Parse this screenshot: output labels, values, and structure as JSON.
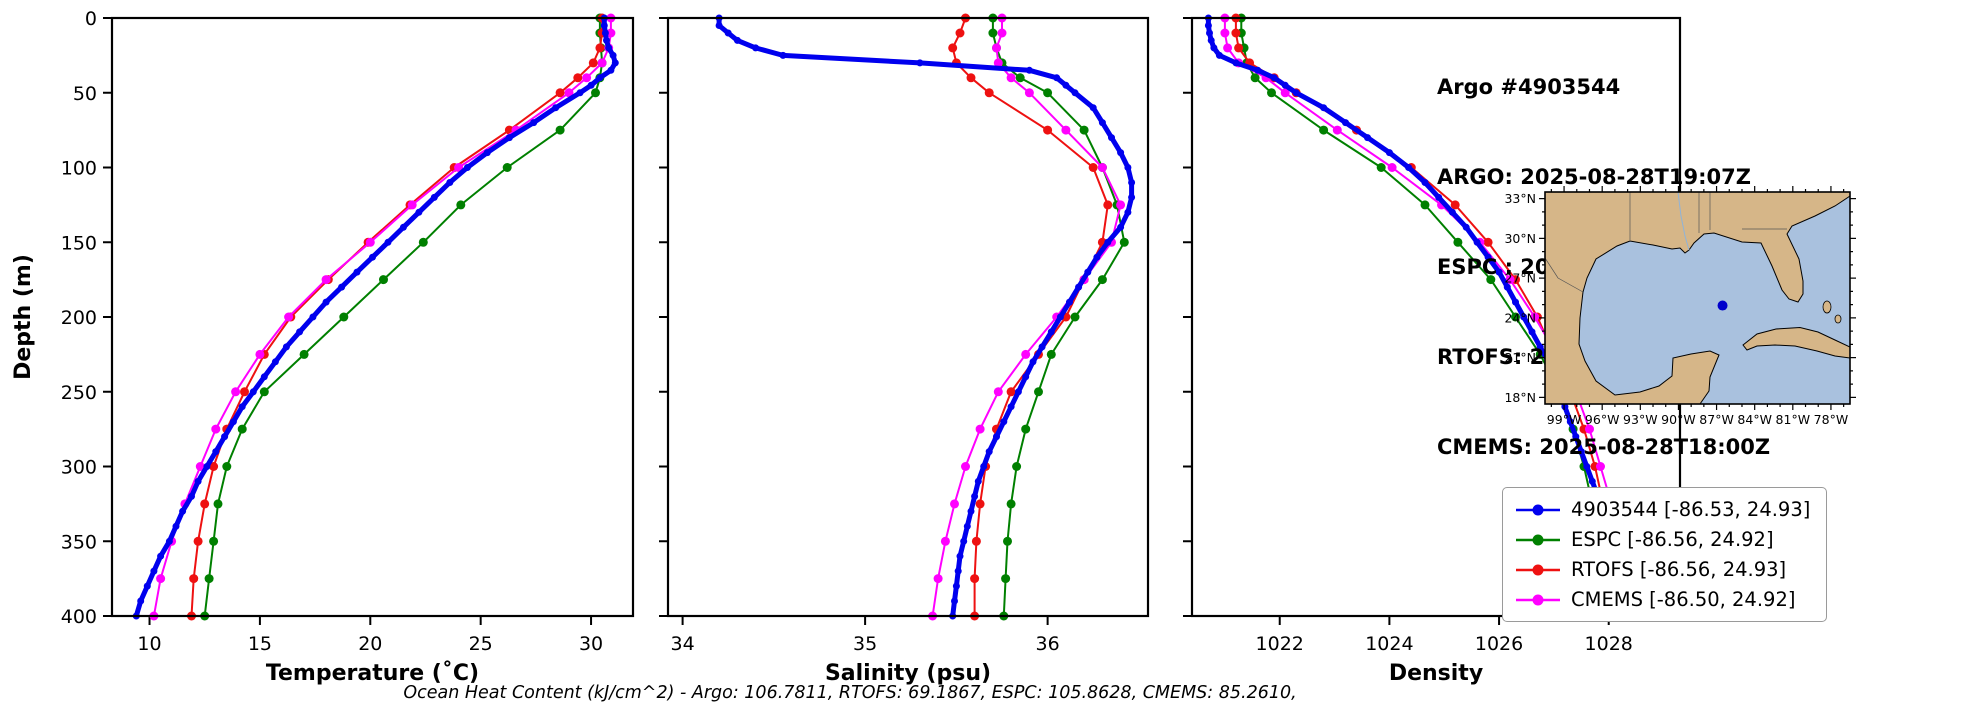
{
  "figure": {
    "title_lines": [
      "Argo #4903544",
      "ARGO: 2025-08-28T19:07Z",
      "ESPC : 2025-08-28T18:00Z",
      "RTOFS: 2025-08-28T18:00Z",
      "CMEMS: 2025-08-28T18:00Z"
    ],
    "caption": "Ocean Heat Content (kJ/cm^2) - Argo: 106.7811,  RTOFS: 69.1867,  ESPC: 105.8628,  CMEMS: 85.2610,"
  },
  "chart_data": {
    "type": "line",
    "ylabel": "Depth (m)",
    "ylim": [
      0,
      400
    ],
    "yticks": [
      0,
      50,
      100,
      150,
      200,
      250,
      300,
      350,
      400
    ],
    "panels": [
      {
        "id": "temperature",
        "xlabel": "Temperature (˚C)",
        "xlim": [
          8.3,
          31.9
        ],
        "xticks": [
          10,
          15,
          20,
          25,
          30
        ]
      },
      {
        "id": "salinity",
        "xlabel": "Salinity (psu)",
        "xlim": [
          33.92,
          36.55
        ],
        "xticks": [
          34,
          35,
          36
        ]
      },
      {
        "id": "density",
        "xlabel": "Density",
        "xlim": [
          1020.4,
          1029.3
        ],
        "xticks": [
          1022,
          1024,
          1026,
          1028
        ]
      }
    ],
    "series": [
      {
        "name": "4903544",
        "color": "#0000ee",
        "line_width": 5,
        "marker_radius": 3.5,
        "depths": [
          0,
          5,
          10,
          15,
          20,
          25,
          30,
          35,
          40,
          45,
          50,
          60,
          70,
          80,
          90,
          100,
          110,
          120,
          130,
          140,
          150,
          160,
          170,
          180,
          190,
          200,
          210,
          220,
          230,
          240,
          250,
          260,
          270,
          280,
          290,
          300,
          310,
          320,
          330,
          340,
          350,
          360,
          370,
          380,
          390,
          400
        ],
        "temperature": [
          30.6,
          30.6,
          30.65,
          30.7,
          30.8,
          31.0,
          31.1,
          30.9,
          30.4,
          30.0,
          29.5,
          28.4,
          27.4,
          26.3,
          25.3,
          24.4,
          23.6,
          22.9,
          22.2,
          21.5,
          20.8,
          20.1,
          19.4,
          18.7,
          18.0,
          17.4,
          16.8,
          16.2,
          15.7,
          15.2,
          14.7,
          14.2,
          13.8,
          13.4,
          13.0,
          12.6,
          12.2,
          11.9,
          11.5,
          11.2,
          10.9,
          10.5,
          10.2,
          9.9,
          9.6,
          9.4
        ],
        "salinity": [
          34.2,
          34.2,
          34.25,
          34.3,
          34.4,
          34.55,
          35.3,
          35.9,
          36.05,
          36.1,
          36.15,
          36.25,
          36.3,
          36.35,
          36.4,
          36.44,
          36.46,
          36.46,
          36.44,
          36.4,
          36.33,
          36.27,
          36.22,
          36.17,
          36.12,
          36.07,
          36.02,
          35.97,
          35.92,
          35.88,
          35.84,
          35.8,
          35.76,
          35.72,
          35.68,
          35.65,
          35.62,
          35.6,
          35.58,
          35.56,
          35.54,
          35.52,
          35.51,
          35.5,
          35.49,
          35.48
        ],
        "density": [
          1020.7,
          1020.7,
          1020.72,
          1020.75,
          1020.8,
          1020.9,
          1021.2,
          1021.6,
          1021.9,
          1022.1,
          1022.3,
          1022.8,
          1023.2,
          1023.6,
          1024.0,
          1024.35,
          1024.65,
          1024.9,
          1025.15,
          1025.4,
          1025.6,
          1025.8,
          1026.0,
          1026.15,
          1026.3,
          1026.45,
          1026.6,
          1026.75,
          1026.9,
          1027.0,
          1027.1,
          1027.2,
          1027.3,
          1027.4,
          1027.5,
          1027.6,
          1027.7,
          1027.8,
          1027.9,
          1027.95,
          1028.05,
          1028.15,
          1028.25,
          1028.35,
          1028.45,
          1028.55
        ]
      },
      {
        "name": "ESPC",
        "color": "#008000",
        "line_width": 2,
        "marker_radius": 4.5,
        "depths": [
          0,
          10,
          20,
          30,
          40,
          50,
          75,
          100,
          125,
          150,
          175,
          200,
          225,
          250,
          275,
          300,
          325,
          350,
          375,
          400
        ],
        "temperature": [
          30.4,
          30.4,
          30.45,
          30.5,
          30.4,
          30.2,
          28.6,
          26.2,
          24.1,
          22.4,
          20.6,
          18.8,
          17.0,
          15.2,
          14.2,
          13.5,
          13.1,
          12.9,
          12.7,
          12.5
        ],
        "salinity": [
          35.7,
          35.7,
          35.72,
          35.75,
          35.85,
          36.0,
          36.2,
          36.3,
          36.38,
          36.42,
          36.3,
          36.15,
          36.02,
          35.95,
          35.88,
          35.83,
          35.8,
          35.78,
          35.77,
          35.76
        ],
        "density": [
          1021.3,
          1021.3,
          1021.35,
          1021.4,
          1021.55,
          1021.85,
          1022.8,
          1023.85,
          1024.65,
          1025.25,
          1025.85,
          1026.3,
          1026.75,
          1027.1,
          1027.35,
          1027.55,
          1027.7,
          1027.85,
          1027.95,
          1028.05
        ]
      },
      {
        "name": "RTOFS",
        "color": "#ee1111",
        "line_width": 2,
        "marker_radius": 4.5,
        "depths": [
          0,
          10,
          20,
          30,
          40,
          50,
          75,
          100,
          125,
          150,
          175,
          200,
          225,
          250,
          275,
          300,
          325,
          350,
          375,
          400
        ],
        "temperature": [
          30.5,
          30.5,
          30.4,
          30.1,
          29.4,
          28.6,
          26.3,
          23.8,
          21.8,
          19.9,
          18.1,
          16.4,
          15.2,
          14.3,
          13.5,
          12.9,
          12.5,
          12.2,
          12.0,
          11.9
        ],
        "salinity": [
          35.55,
          35.52,
          35.48,
          35.5,
          35.58,
          35.68,
          36.0,
          36.25,
          36.33,
          36.3,
          36.2,
          36.1,
          35.95,
          35.8,
          35.72,
          35.66,
          35.63,
          35.61,
          35.6,
          35.6
        ],
        "density": [
          1021.2,
          1021.2,
          1021.25,
          1021.45,
          1021.9,
          1022.3,
          1023.4,
          1024.4,
          1025.2,
          1025.8,
          1026.3,
          1026.7,
          1027.0,
          1027.3,
          1027.55,
          1027.75,
          1027.9,
          1028.0,
          1028.1,
          1028.15
        ]
      },
      {
        "name": "CMEMS",
        "color": "#ff00ff",
        "line_width": 2,
        "marker_radius": 4.5,
        "depths": [
          0,
          10,
          20,
          30,
          40,
          50,
          75,
          100,
          125,
          150,
          175,
          200,
          225,
          250,
          275,
          300,
          325,
          350,
          375,
          400
        ],
        "temperature": [
          30.9,
          30.9,
          30.8,
          30.5,
          29.8,
          29.0,
          26.6,
          24.0,
          21.9,
          20.0,
          18.0,
          16.3,
          15.0,
          13.9,
          13.0,
          12.3,
          11.6,
          11.0,
          10.5,
          10.2
        ],
        "salinity": [
          35.75,
          35.75,
          35.72,
          35.73,
          35.8,
          35.9,
          36.1,
          36.3,
          36.4,
          36.35,
          36.2,
          36.05,
          35.88,
          35.73,
          35.63,
          35.55,
          35.49,
          35.44,
          35.4,
          35.37
        ],
        "density": [
          1021.0,
          1021.0,
          1021.05,
          1021.25,
          1021.75,
          1022.1,
          1023.05,
          1024.05,
          1024.95,
          1025.65,
          1026.2,
          1026.65,
          1027.05,
          1027.4,
          1027.65,
          1027.85,
          1028.05,
          1028.25,
          1028.4,
          1028.55
        ]
      }
    ]
  },
  "map": {
    "extent": {
      "lon": [
        -100.5,
        -76.5
      ],
      "lat": [
        17.5,
        33.5
      ]
    },
    "lat_tick_values": [
      33,
      30,
      27,
      24,
      21,
      18
    ],
    "lat_tick_labels": [
      "33°N",
      "30°N",
      "27°N",
      "24°N",
      "21°N",
      "18°N"
    ],
    "lon_tick_values": [
      -99,
      -96,
      -93,
      -90,
      -87,
      -84,
      -81,
      -78
    ],
    "lon_tick_labels": [
      "99°W",
      "96°W",
      "93°W",
      "90°W",
      "87°W",
      "84°W",
      "81°W",
      "78°W"
    ],
    "marker": {
      "lon": -86.53,
      "lat": 24.93,
      "color": "#0000cc"
    },
    "land_color": "#d6b688",
    "water_color": "#a9c1de"
  },
  "legend": {
    "items": [
      {
        "label": "4903544 [-86.53, 24.93]",
        "color": "#0000ee"
      },
      {
        "label": "ESPC [-86.56, 24.92]",
        "color": "#008000"
      },
      {
        "label": "RTOFS [-86.56, 24.93]",
        "color": "#ee1111"
      },
      {
        "label": "CMEMS [-86.50, 24.92]",
        "color": "#ff00ff"
      }
    ]
  }
}
